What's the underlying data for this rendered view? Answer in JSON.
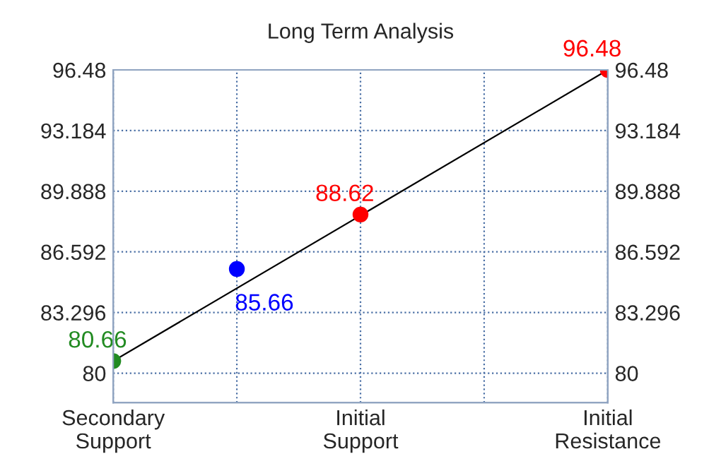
{
  "chart_data": {
    "type": "scatter",
    "title": "Long Term Analysis",
    "categories": [
      "Secondary\nSupport",
      null,
      "Initial\nSupport",
      null,
      "Initial\nResistance"
    ],
    "ylim": [
      78.4,
      96.48
    ],
    "yticks": [
      80,
      83.296,
      86.592,
      89.888,
      93.184,
      96.48
    ],
    "y2lim": [
      78.4,
      96.48
    ],
    "y2ticks": [
      80,
      83.296,
      86.592,
      89.888,
      93.184,
      96.48
    ],
    "grid": true,
    "series": [
      {
        "type": "line",
        "color": "#000000",
        "values": [
          80.66,
          null,
          null,
          null,
          96.48
        ]
      },
      {
        "marker": "circle",
        "values": [
          80.66,
          85.66,
          88.62,
          null,
          96.48
        ],
        "value_labels": [
          "80.66",
          "85.66",
          "88.62",
          null,
          "96.48"
        ],
        "colors": [
          "#228b22",
          "#0000ff",
          "#ff0000",
          null,
          "#ff0000"
        ]
      }
    ]
  }
}
